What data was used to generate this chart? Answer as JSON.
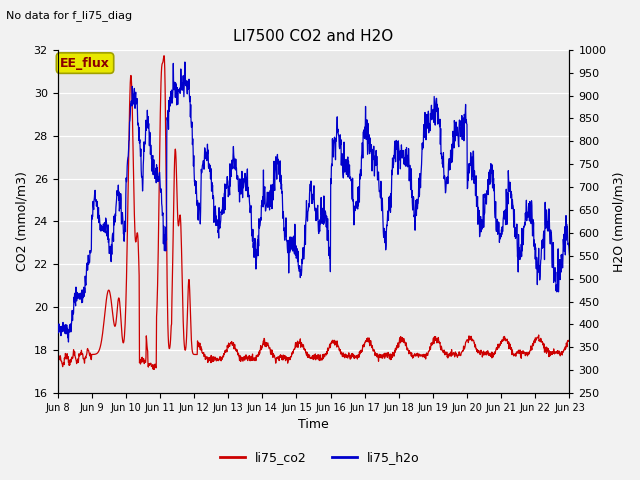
{
  "title": "LI7500 CO2 and H2O",
  "top_left_text": "No data for f_li75_diag",
  "xlabel": "Time",
  "ylabel_left": "CO2 (mmol/m3)",
  "ylabel_right": "H2O (mmol/m3)",
  "ylim_left": [
    16,
    32
  ],
  "ylim_right": [
    250,
    1000
  ],
  "yticks_left": [
    16,
    18,
    20,
    22,
    24,
    26,
    28,
    30,
    32
  ],
  "yticks_right": [
    250,
    300,
    350,
    400,
    450,
    500,
    550,
    600,
    650,
    700,
    750,
    800,
    850,
    900,
    950,
    1000
  ],
  "xtick_labels": [
    "Jun 8",
    "Jun 9",
    "Jun 10",
    "Jun 11",
    "Jun 12",
    "Jun 13",
    "Jun 14",
    "Jun 15",
    "Jun 16",
    "Jun 17",
    "Jun 18",
    "Jun 19",
    "Jun 20",
    "Jun 21",
    "Jun 22",
    "Jun 23"
  ],
  "legend_labels": [
    "li75_co2",
    "li75_h2o"
  ],
  "legend_colors": [
    "#cc0000",
    "#0000cc"
  ],
  "ee_flux_text": "EE_flux",
  "background_color": "#e8e8e8",
  "grid_color": "#ffffff",
  "co2_color": "#cc0000",
  "h2o_color": "#0000cc",
  "n_points": 1500
}
